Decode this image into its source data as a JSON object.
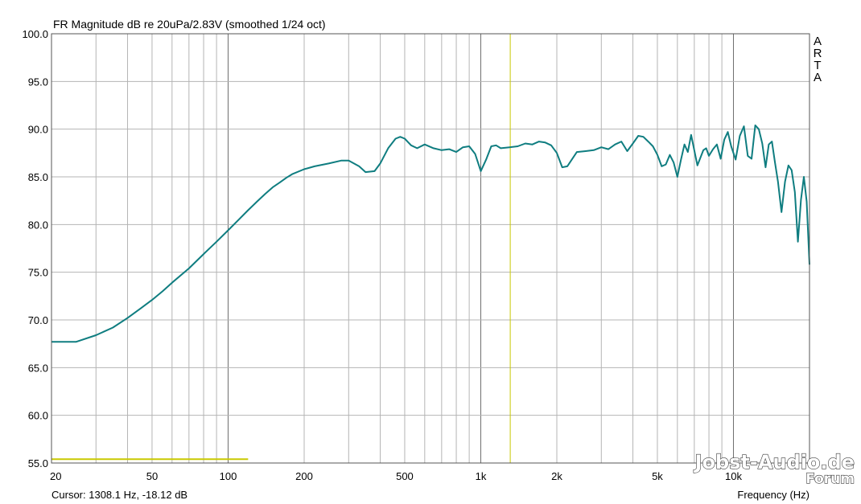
{
  "chart_data": {
    "type": "line",
    "title": "FR Magnitude dB re 20uPa/2.83V (smoothed 1/24 oct)",
    "xlabel": "Frequency (Hz)",
    "ylabel": "",
    "x_scale": "log",
    "xlim": [
      20,
      20000
    ],
    "ylim": [
      55,
      100
    ],
    "y_ticks": [
      "100.0",
      "95.0",
      "90.0",
      "85.0",
      "80.0",
      "75.0",
      "70.0",
      "65.0",
      "60.0",
      "55.0"
    ],
    "x_ticks": [
      {
        "value": 20,
        "label": "20"
      },
      {
        "value": 50,
        "label": "50"
      },
      {
        "value": 100,
        "label": "100"
      },
      {
        "value": 200,
        "label": "200"
      },
      {
        "value": 500,
        "label": "500"
      },
      {
        "value": 1000,
        "label": "1k"
      },
      {
        "value": 2000,
        "label": "2k"
      },
      {
        "value": 5000,
        "label": "5k"
      },
      {
        "value": 10000,
        "label": "10k"
      }
    ],
    "grid": true,
    "side_label": [
      "A",
      "R",
      "T",
      "A"
    ],
    "cursor": {
      "frequency": 1308.1,
      "readout": "Cursor: 1308.1 Hz, -18.12 dB"
    },
    "reference_segment": {
      "x": [
        20,
        120
      ],
      "y": 55.4
    },
    "series": [
      {
        "color": "#0f7d80",
        "x": [
          20,
          25,
          30,
          35,
          40,
          45,
          50,
          55,
          60,
          70,
          80,
          90,
          100,
          110,
          120,
          130,
          140,
          150,
          160,
          170,
          180,
          200,
          220,
          250,
          280,
          300,
          330,
          350,
          380,
          400,
          430,
          460,
          480,
          500,
          530,
          560,
          600,
          650,
          700,
          750,
          800,
          850,
          900,
          950,
          1000,
          1050,
          1100,
          1150,
          1200,
          1300,
          1400,
          1500,
          1600,
          1700,
          1800,
          1900,
          2000,
          2100,
          2200,
          2400,
          2600,
          2800,
          3000,
          3200,
          3400,
          3600,
          3800,
          4000,
          4200,
          4400,
          4600,
          4800,
          5000,
          5200,
          5400,
          5600,
          5800,
          6000,
          6200,
          6400,
          6600,
          6800,
          7000,
          7200,
          7400,
          7600,
          7800,
          8000,
          8300,
          8600,
          8900,
          9200,
          9500,
          9800,
          10200,
          10600,
          11000,
          11400,
          11800,
          12200,
          12600,
          13000,
          13400,
          13800,
          14200,
          14600,
          15000,
          15500,
          16000,
          16500,
          17000,
          17500,
          18000,
          18500,
          19000,
          19500,
          20000
        ],
        "y": [
          67.7,
          67.7,
          68.4,
          69.2,
          70.2,
          71.2,
          72.1,
          73.0,
          73.9,
          75.4,
          76.9,
          78.2,
          79.4,
          80.5,
          81.5,
          82.4,
          83.2,
          83.9,
          84.4,
          84.9,
          85.3,
          85.8,
          86.1,
          86.4,
          86.7,
          86.7,
          86.1,
          85.5,
          85.6,
          86.4,
          88.0,
          89.0,
          89.2,
          89.0,
          88.3,
          88.0,
          88.4,
          88.0,
          87.8,
          87.9,
          87.6,
          88.1,
          88.2,
          87.4,
          85.6,
          86.8,
          88.2,
          88.3,
          88.0,
          88.1,
          88.2,
          88.5,
          88.4,
          88.7,
          88.6,
          88.3,
          87.5,
          86.0,
          86.1,
          87.6,
          87.7,
          87.8,
          88.1,
          87.9,
          88.4,
          88.7,
          87.7,
          88.5,
          89.3,
          89.2,
          88.7,
          88.2,
          87.3,
          86.1,
          86.3,
          87.3,
          86.5,
          85.0,
          86.8,
          88.4,
          87.6,
          89.4,
          87.8,
          86.2,
          87.0,
          87.8,
          88.0,
          87.2,
          87.9,
          88.4,
          86.9,
          88.9,
          89.7,
          88.2,
          86.8,
          89.3,
          90.3,
          87.2,
          86.9,
          90.4,
          90.0,
          88.5,
          86.0,
          88.4,
          88.7,
          86.5,
          84.5,
          81.3,
          84.5,
          86.2,
          85.7,
          83.4,
          78.2,
          82.6,
          85.0,
          82.4,
          75.8
        ]
      }
    ]
  },
  "watermark": {
    "line1": "Jobst-Audio.de",
    "line2": "Forum"
  }
}
